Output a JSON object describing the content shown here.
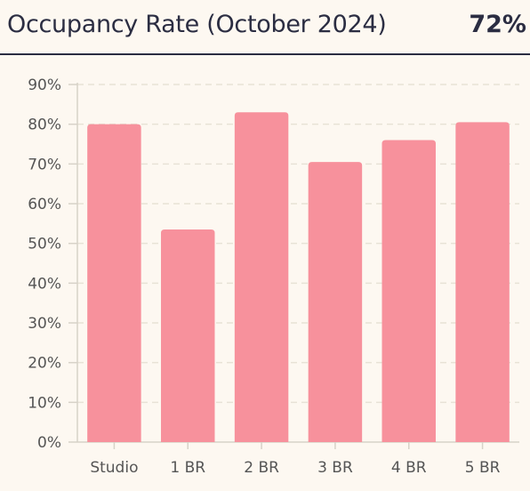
{
  "header": {
    "title": "Occupancy Rate (October 2024)",
    "value": "72%"
  },
  "colors": {
    "background": "#fdf8f1",
    "bar": "#f7919c",
    "axis": "#d7d2c8",
    "grid": "#e8e2d6",
    "text": "#2b2d42",
    "tick": "#555555"
  },
  "chart_data": {
    "type": "bar",
    "title": "Occupancy Rate (October 2024)",
    "categories": [
      "Studio",
      "1 BR",
      "2 BR",
      "3 BR",
      "4 BR",
      "5 BR"
    ],
    "values": [
      80,
      53.5,
      83,
      70.5,
      76,
      80.5
    ],
    "unit": "%",
    "ylim": [
      0,
      90
    ],
    "yticks": [
      0,
      10,
      20,
      30,
      40,
      50,
      60,
      70,
      80,
      90
    ],
    "ytick_labels": [
      "0%",
      "10%",
      "20%",
      "30%",
      "40%",
      "50%",
      "60%",
      "70%",
      "80%",
      "90%"
    ],
    "grid": true,
    "legend": "none"
  }
}
